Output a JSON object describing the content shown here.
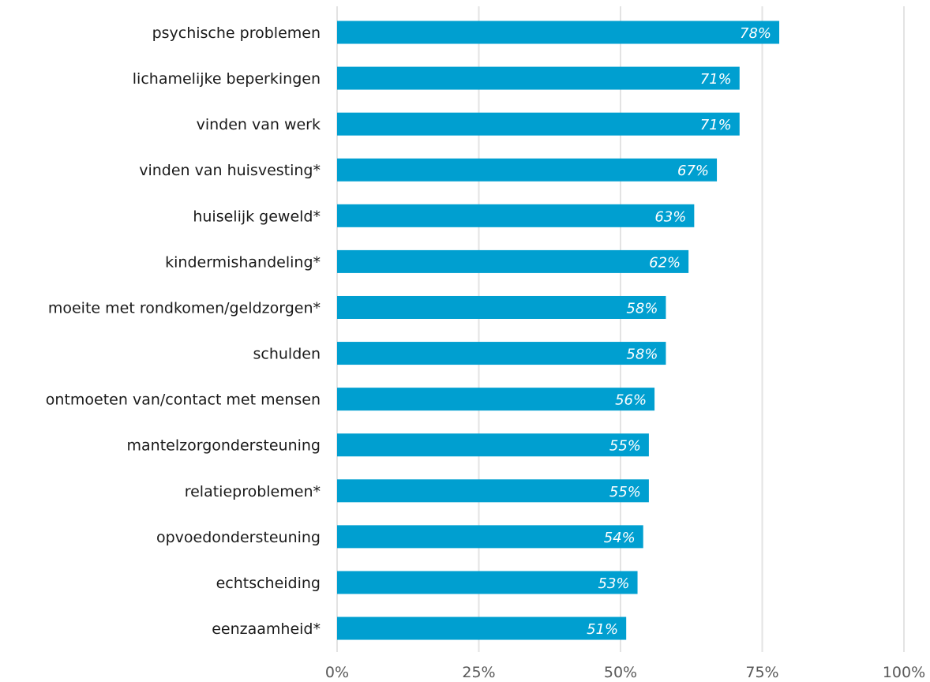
{
  "chart_data": {
    "type": "bar",
    "orientation": "horizontal",
    "title": "",
    "xlabel": "",
    "ylabel": "",
    "categories": [
      "psychische problemen",
      "lichamelijke beperkingen",
      "vinden van werk",
      "vinden van huisvesting*",
      "huiselijk geweld*",
      "kindermishandeling*",
      "moeite met rondkomen/geldzorgen*",
      "schulden",
      "ontmoeten van/contact met mensen",
      "mantelzorgondersteuning",
      "relatieproblemen*",
      "opvoedondersteuning",
      "echtscheiding",
      "eenzaamheid*"
    ],
    "values": [
      78,
      71,
      71,
      67,
      63,
      62,
      58,
      58,
      56,
      55,
      55,
      54,
      53,
      51
    ],
    "value_labels": [
      "78%",
      "71%",
      "71%",
      "67%",
      "63%",
      "62%",
      "58%",
      "58%",
      "56%",
      "55%",
      "55%",
      "54%",
      "53%",
      "51%"
    ],
    "xlim": [
      0,
      100
    ],
    "x_ticks": [
      0,
      25,
      50,
      75,
      100
    ],
    "x_tick_labels": [
      "0%",
      "25%",
      "50%",
      "75%",
      "100%"
    ],
    "grid": true,
    "legend": false,
    "bar_color": "#009fd0",
    "grid_color": "#e3e3e3",
    "label_color": "#1a1a1a",
    "tick_color": "#595959",
    "value_label_color": "#ffffff"
  }
}
